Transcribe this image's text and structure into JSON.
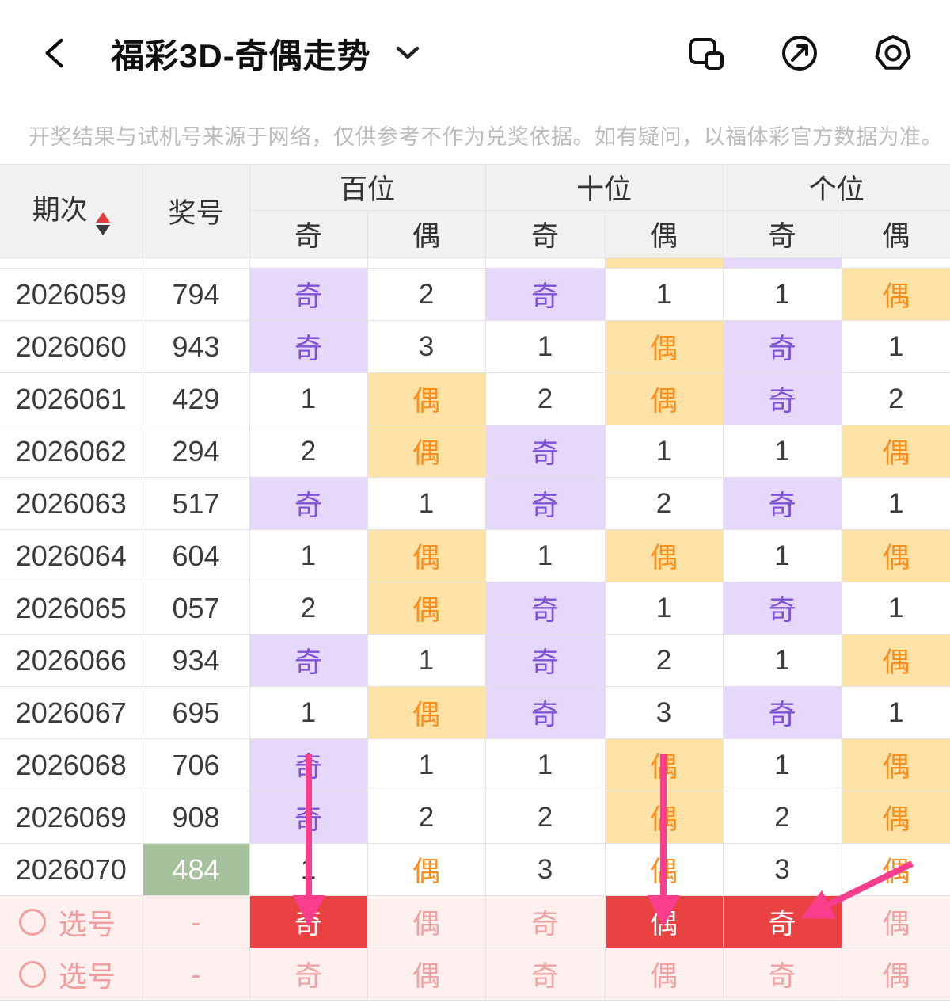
{
  "header": {
    "title": "福彩3D-奇偶走势",
    "icons": {
      "back": "chevron-left",
      "title_caret": "chevron-down",
      "floating_window": "floating-window",
      "share": "compass-arrow",
      "settings": "gear-octagon"
    }
  },
  "disclaimer": "开奖结果与试机号来源于网络，仅供参考不作为兑奖依据。如有疑问，以福体彩官方数据为准。",
  "table": {
    "issue_header": "期次",
    "number_header": "奖号",
    "groups": [
      "百位",
      "十位",
      "个位"
    ],
    "sub_headers": [
      "奇",
      "偶"
    ],
    "partial_row_states": [
      "plain",
      "plain",
      "plain",
      "even",
      "odd",
      "plain"
    ],
    "rows": [
      {
        "issue": "2026059",
        "number": "794",
        "latest": false,
        "cells": [
          [
            "奇",
            "odd"
          ],
          [
            "2",
            "plain"
          ],
          [
            "奇",
            "odd"
          ],
          [
            "1",
            "plain"
          ],
          [
            "1",
            "plain"
          ],
          [
            "偶",
            "even"
          ]
        ]
      },
      {
        "issue": "2026060",
        "number": "943",
        "latest": false,
        "cells": [
          [
            "奇",
            "odd"
          ],
          [
            "3",
            "plain"
          ],
          [
            "1",
            "plain"
          ],
          [
            "偶",
            "even"
          ],
          [
            "奇",
            "odd"
          ],
          [
            "1",
            "plain"
          ]
        ]
      },
      {
        "issue": "2026061",
        "number": "429",
        "latest": false,
        "cells": [
          [
            "1",
            "plain"
          ],
          [
            "偶",
            "even"
          ],
          [
            "2",
            "plain"
          ],
          [
            "偶",
            "even"
          ],
          [
            "奇",
            "odd"
          ],
          [
            "2",
            "plain"
          ]
        ]
      },
      {
        "issue": "2026062",
        "number": "294",
        "latest": false,
        "cells": [
          [
            "2",
            "plain"
          ],
          [
            "偶",
            "even"
          ],
          [
            "奇",
            "odd"
          ],
          [
            "1",
            "plain"
          ],
          [
            "1",
            "plain"
          ],
          [
            "偶",
            "even"
          ]
        ]
      },
      {
        "issue": "2026063",
        "number": "517",
        "latest": false,
        "cells": [
          [
            "奇",
            "odd"
          ],
          [
            "1",
            "plain"
          ],
          [
            "奇",
            "odd"
          ],
          [
            "2",
            "plain"
          ],
          [
            "奇",
            "odd"
          ],
          [
            "1",
            "plain"
          ]
        ]
      },
      {
        "issue": "2026064",
        "number": "604",
        "latest": false,
        "cells": [
          [
            "1",
            "plain"
          ],
          [
            "偶",
            "even"
          ],
          [
            "1",
            "plain"
          ],
          [
            "偶",
            "even"
          ],
          [
            "1",
            "plain"
          ],
          [
            "偶",
            "even"
          ]
        ]
      },
      {
        "issue": "2026065",
        "number": "057",
        "latest": false,
        "cells": [
          [
            "2",
            "plain"
          ],
          [
            "偶",
            "even"
          ],
          [
            "奇",
            "odd"
          ],
          [
            "1",
            "plain"
          ],
          [
            "奇",
            "odd"
          ],
          [
            "1",
            "plain"
          ]
        ]
      },
      {
        "issue": "2026066",
        "number": "934",
        "latest": false,
        "cells": [
          [
            "奇",
            "odd"
          ],
          [
            "1",
            "plain"
          ],
          [
            "奇",
            "odd"
          ],
          [
            "2",
            "plain"
          ],
          [
            "1",
            "plain"
          ],
          [
            "偶",
            "even"
          ]
        ]
      },
      {
        "issue": "2026067",
        "number": "695",
        "latest": false,
        "cells": [
          [
            "1",
            "plain"
          ],
          [
            "偶",
            "even"
          ],
          [
            "奇",
            "odd"
          ],
          [
            "3",
            "plain"
          ],
          [
            "奇",
            "odd"
          ],
          [
            "1",
            "plain"
          ]
        ]
      },
      {
        "issue": "2026068",
        "number": "706",
        "latest": false,
        "cells": [
          [
            "奇",
            "odd"
          ],
          [
            "1",
            "plain"
          ],
          [
            "1",
            "plain"
          ],
          [
            "偶",
            "even"
          ],
          [
            "1",
            "plain"
          ],
          [
            "偶",
            "even"
          ]
        ]
      },
      {
        "issue": "2026069",
        "number": "908",
        "latest": false,
        "cells": [
          [
            "奇",
            "odd"
          ],
          [
            "2",
            "plain"
          ],
          [
            "2",
            "plain"
          ],
          [
            "偶",
            "even"
          ],
          [
            "2",
            "plain"
          ],
          [
            "偶",
            "even"
          ]
        ]
      },
      {
        "issue": "2026070",
        "number": "484",
        "latest": true,
        "cells": [
          [
            "1",
            "plain"
          ],
          [
            "偶",
            "even-text"
          ],
          [
            "3",
            "plain"
          ],
          [
            "偶",
            "even-text"
          ],
          [
            "3",
            "plain"
          ],
          [
            "偶",
            "even-text"
          ]
        ]
      }
    ],
    "pick_rows": [
      {
        "label": "选号",
        "number": "-",
        "cells": [
          [
            "奇",
            "selected"
          ],
          [
            "偶",
            "pick"
          ],
          [
            "奇",
            "pick"
          ],
          [
            "偶",
            "selected"
          ],
          [
            "奇",
            "selected"
          ],
          [
            "偶",
            "pick"
          ]
        ]
      },
      {
        "label": "选号",
        "number": "-",
        "cells": [
          [
            "奇",
            "pick"
          ],
          [
            "偶",
            "pick"
          ],
          [
            "奇",
            "pick"
          ],
          [
            "偶",
            "pick"
          ],
          [
            "奇",
            "pick"
          ],
          [
            "偶",
            "pick"
          ]
        ]
      }
    ]
  },
  "colors": {
    "odd_bg": "#e5d8fa",
    "odd_text": "#7e50d8",
    "even_bg": "#ffe2a6",
    "even_text": "#fc8e1e",
    "latest_number_bg": "#a6c29d",
    "selected_bg": "#ea4242",
    "pick_text": "#ef9d9d",
    "arrow": "#fa3e8e",
    "header_bg": "#f1f1f1"
  }
}
